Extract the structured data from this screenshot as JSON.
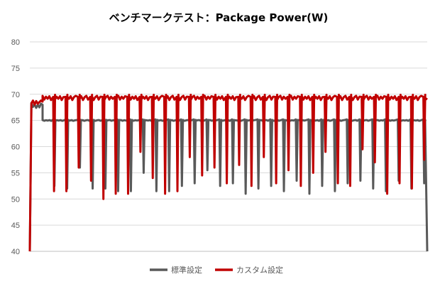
{
  "chart_data": {
    "type": "line",
    "title": "ベンチマークテスト：Package Power(W)",
    "xlabel": "",
    "ylabel": "",
    "ylim": [
      40,
      80
    ],
    "yticks": [
      40,
      45,
      50,
      55,
      60,
      65,
      70,
      75,
      80
    ],
    "grid": true,
    "legend_position": "bottom",
    "series": [
      {
        "name": "標準設定",
        "color": "#595959",
        "baseline": 65.0,
        "start": {
          "points": [
            40,
            68.3,
            67.6,
            68.0,
            67.4,
            68.0,
            67.5,
            68.2,
            68.0
          ]
        },
        "dips": [
          52.5,
          52.0,
          56.0,
          52.0,
          52.0,
          51.5,
          51.5,
          55.0,
          51.5,
          51.5,
          52.5,
          53.0,
          55.5,
          52.5,
          53.0,
          51.0,
          52.0,
          52.5,
          51.5,
          53.5,
          51.0,
          52.5,
          51.5,
          53.0,
          53.5,
          52.0,
          51.5,
          53.5,
          52.0,
          53.0
        ],
        "end": 40
      },
      {
        "name": "カスタム設定",
        "color": "#c00000",
        "baseline": 69.3,
        "start": {
          "points": [
            40,
            68.3,
            68.8,
            68.0,
            68.7,
            68.2,
            68.5,
            68.8,
            68.6
          ]
        },
        "dips": [
          51.5,
          51.5,
          56.0,
          53.5,
          50.0,
          51.0,
          51.0,
          59.0,
          54.0,
          51.0,
          51.5,
          58.0,
          54.5,
          56.0,
          53.0,
          56.5,
          52.5,
          58.0,
          53.0,
          55.5,
          52.5,
          55.0,
          59.0,
          53.0,
          52.5,
          59.5,
          57.0,
          51.0,
          53.0,
          52.0,
          57.5
        ],
        "end": 69.0
      }
    ]
  }
}
